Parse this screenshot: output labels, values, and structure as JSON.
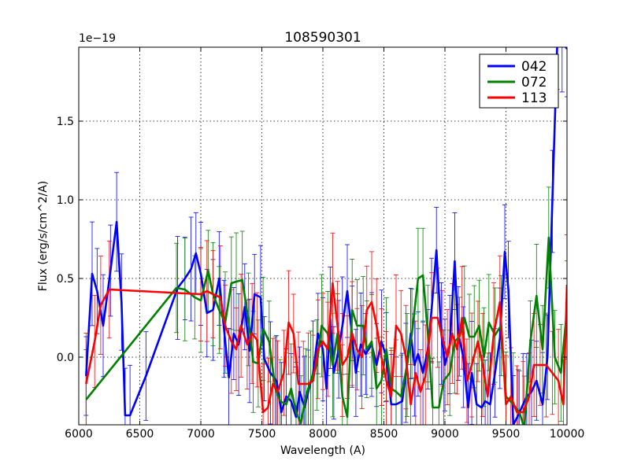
{
  "chart_data": {
    "type": "line",
    "title": "108590301",
    "xlabel": "Wavelength (A)",
    "ylabel": "Flux (erg/s/cm^2/A)",
    "offset_label": "1e−19",
    "xlim": [
      6000,
      10000
    ],
    "ylim": [
      -0.43,
      1.97
    ],
    "xticks": [
      6000,
      6500,
      7000,
      7500,
      8000,
      8500,
      9000,
      9500,
      10000
    ],
    "xtick_labels": [
      "6000",
      "6500",
      "7000",
      "7500",
      "8000",
      "8500",
      "9000",
      "9500",
      "10000"
    ],
    "yticks": [
      0.0,
      0.5,
      1.0,
      1.5
    ],
    "ytick_labels": [
      "0.0",
      "0.5",
      "1.0",
      "1.5"
    ],
    "grid": true,
    "legend_position": "top-right",
    "series": [
      {
        "name": "042",
        "color": "#0000ff",
        "x": [
          6060,
          6110,
          6150,
          6200,
          6260,
          6310,
          6350,
          6380,
          6420,
          6550,
          6810,
          6870,
          6920,
          6960,
          7000,
          7050,
          7100,
          7150,
          7190,
          7230,
          7270,
          7310,
          7360,
          7400,
          7440,
          7490,
          7520,
          7570,
          7620,
          7660,
          7700,
          7740,
          7780,
          7810,
          7850,
          7880,
          7920,
          7960,
          8000,
          8030,
          8060,
          8090,
          8130,
          8160,
          8200,
          8240,
          8270,
          8310,
          8350,
          8400,
          8440,
          8480,
          8520,
          8560,
          8600,
          8650,
          8680,
          8720,
          8750,
          8780,
          8820,
          8860,
          8890,
          8930,
          8970,
          9000,
          9040,
          9080,
          9110,
          9150,
          9190,
          9220,
          9260,
          9300,
          9330,
          9370,
          9410,
          9450,
          9490,
          9520,
          9560,
          9600,
          9640,
          9670,
          9710,
          9750,
          9800,
          9840,
          9880,
          9920,
          9960,
          10000
        ],
        "y": [
          -0.12,
          0.53,
          0.42,
          0.2,
          0.55,
          0.86,
          0.35,
          -0.37,
          -0.37,
          -0.12,
          0.44,
          0.5,
          0.56,
          0.66,
          0.53,
          0.28,
          0.3,
          0.5,
          0.18,
          -0.13,
          0.15,
          0.08,
          0.32,
          0.04,
          0.4,
          0.38,
          -0.01,
          -0.1,
          -0.15,
          -0.35,
          -0.25,
          -0.28,
          -0.38,
          -0.22,
          -0.32,
          -0.22,
          -0.1,
          0.15,
          0.05,
          -0.2,
          0.25,
          -0.1,
          0.05,
          0.2,
          0.42,
          0.13,
          -0.1,
          0.08,
          0.02,
          0.08,
          -0.05,
          0.1,
          0.0,
          -0.3,
          -0.3,
          -0.28,
          -0.1,
          0.15,
          -0.05,
          0.02,
          -0.1,
          0.05,
          0.3,
          0.68,
          0.15,
          -0.05,
          0.08,
          0.61,
          0.15,
          0.0,
          -0.32,
          -0.1,
          -0.3,
          -0.32,
          -0.28,
          -0.3,
          -0.1,
          0.12,
          0.67,
          0.43,
          -0.43,
          -0.37,
          -0.3,
          -0.25,
          -0.22,
          -0.15,
          -0.3,
          0.0,
          0.99,
          1.99,
          2.0,
          1.96
        ]
      },
      {
        "name": "072",
        "color": "#008000",
        "x": [
          6060,
          6800,
          6870,
          6950,
          7000,
          7060,
          7100,
          7150,
          7200,
          7250,
          7290,
          7340,
          7390,
          7430,
          7470,
          7510,
          7560,
          7610,
          7650,
          7700,
          7740,
          7780,
          7820,
          7860,
          7900,
          7950,
          7990,
          8040,
          8080,
          8120,
          8160,
          8200,
          8240,
          8280,
          8330,
          8360,
          8400,
          8440,
          8480,
          8520,
          8560,
          8600,
          8640,
          8690,
          8730,
          8780,
          8820,
          8860,
          8900,
          8950,
          8990,
          9040,
          9080,
          9120,
          9160,
          9200,
          9240,
          9280,
          9320,
          9360,
          9410,
          9460,
          9500,
          9560,
          9610,
          9650,
          9700,
          9750,
          9800,
          9850,
          9900,
          9950,
          10000
        ],
        "y": [
          -0.27,
          0.44,
          0.43,
          0.38,
          0.36,
          0.55,
          0.4,
          0.3,
          0.22,
          0.47,
          0.48,
          0.49,
          0.24,
          -0.03,
          -0.04,
          0.18,
          0.1,
          -0.2,
          -0.28,
          -0.3,
          -0.2,
          -0.35,
          -0.42,
          -0.25,
          -0.15,
          -0.05,
          0.2,
          0.15,
          -0.05,
          0.15,
          -0.25,
          -0.38,
          0.3,
          0.2,
          0.2,
          0.05,
          0.1,
          -0.2,
          -0.15,
          0.05,
          -0.2,
          -0.22,
          -0.25,
          -0.05,
          0.15,
          0.5,
          0.52,
          0.15,
          -0.32,
          -0.32,
          -0.15,
          -0.1,
          0.1,
          0.13,
          0.25,
          0.13,
          0.13,
          0.2,
          0.0,
          0.22,
          0.14,
          0.2,
          -0.25,
          -0.3,
          -0.35,
          -0.45,
          0.1,
          0.39,
          0.05,
          0.76,
          0.0,
          -0.1,
          0.3
        ]
      },
      {
        "name": "113",
        "color": "#ff0000",
        "x": [
          6060,
          6130,
          6180,
          6250,
          7000,
          7050,
          7100,
          7160,
          7200,
          7250,
          7290,
          7330,
          7380,
          7420,
          7460,
          7510,
          7550,
          7590,
          7630,
          7680,
          7720,
          7760,
          7800,
          7840,
          7880,
          7920,
          7960,
          8000,
          8040,
          8080,
          8120,
          8160,
          8200,
          8240,
          8280,
          8320,
          8360,
          8400,
          8440,
          8480,
          8520,
          8560,
          8600,
          8640,
          8680,
          8720,
          8760,
          8800,
          8840,
          8890,
          8940,
          8980,
          9020,
          9060,
          9100,
          9140,
          9180,
          9220,
          9270,
          9310,
          9350,
          9400,
          9450,
          9500,
          9540,
          9590,
          9640,
          9690,
          9730,
          9780,
          9830,
          9880,
          9930,
          9970,
          10000
        ],
        "y": [
          -0.17,
          0.1,
          0.33,
          0.43,
          0.4,
          0.42,
          0.4,
          0.38,
          0.2,
          0.1,
          0.05,
          0.2,
          0.08,
          0.15,
          0.11,
          -0.35,
          -0.32,
          -0.17,
          -0.22,
          -0.1,
          0.22,
          0.15,
          -0.17,
          -0.17,
          -0.17,
          -0.15,
          0.05,
          0.1,
          0.05,
          0.47,
          0.2,
          -0.05,
          0.0,
          0.15,
          0.05,
          0.0,
          0.3,
          0.35,
          0.2,
          0.0,
          -0.15,
          -0.25,
          0.2,
          0.15,
          0.0,
          -0.3,
          -0.1,
          -0.22,
          -0.12,
          0.25,
          0.25,
          0.12,
          0.0,
          0.15,
          0.05,
          0.25,
          -0.15,
          -0.05,
          0.1,
          -0.05,
          -0.25,
          0.15,
          0.35,
          -0.3,
          -0.25,
          -0.35,
          -0.35,
          -0.25,
          -0.05,
          -0.05,
          -0.05,
          -0.1,
          -0.15,
          -0.3,
          0.46
        ]
      }
    ]
  }
}
